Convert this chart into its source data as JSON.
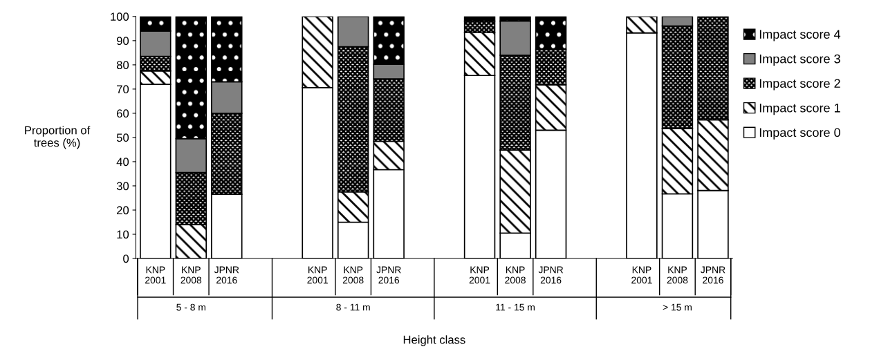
{
  "chart_data": {
    "type": "bar",
    "stacked": true,
    "ylabel": "Proportion of\ntrees (%)",
    "xlabel": "Height class",
    "categories": [
      "KNP\n2001",
      "KNP\n2008",
      "JPNR\n2016",
      "KNP\n2001",
      "KNP\n2008",
      "JPNR\n2016",
      "KNP\n2001",
      "KNP\n2008",
      "JPNR\n2016",
      "KNP\n2001",
      "KNP\n2008",
      "JPNR\n2016"
    ],
    "annotations": [
      "5 - 8 m",
      "8 - 11 m",
      "11 - 15 m",
      "> 15 m"
    ],
    "series": [
      {
        "name": "Impact score 0",
        "color": "#ffffff",
        "values": [
          72,
          0,
          26.5,
          70.6,
          15,
          36.7,
          75.6,
          10.5,
          53,
          93.2,
          26.7,
          28.1
        ]
      },
      {
        "name": "Impact score 1",
        "color": "#ffffff",
        "values": [
          5.5,
          14,
          0,
          29.4,
          12.5,
          11.7,
          17.7,
          34.3,
          18.8,
          6.8,
          27,
          29.2
        ]
      },
      {
        "name": "Impact score 2",
        "color": "#ffffff",
        "values": [
          6,
          21.5,
          33.5,
          0,
          60,
          25.8,
          4.8,
          39.2,
          14.6,
          0,
          42.4,
          42.7
        ]
      },
      {
        "name": "Impact score 3",
        "color": "#808080",
        "values": [
          10.5,
          14,
          13,
          0,
          12.5,
          6.1,
          0,
          14.1,
          0,
          0,
          3.9,
          0
        ]
      },
      {
        "name": "Impact score 4",
        "color": "#000000",
        "values": [
          6,
          50.5,
          27,
          0,
          0,
          19.7,
          1.9,
          1.9,
          13.6,
          0,
          0,
          0
        ]
      }
    ],
    "ylim": [
      0,
      100
    ],
    "yticks": [
      0,
      10,
      20,
      30,
      40,
      50,
      60,
      70,
      80,
      90,
      100
    ],
    "grid": false,
    "legend": "right"
  }
}
